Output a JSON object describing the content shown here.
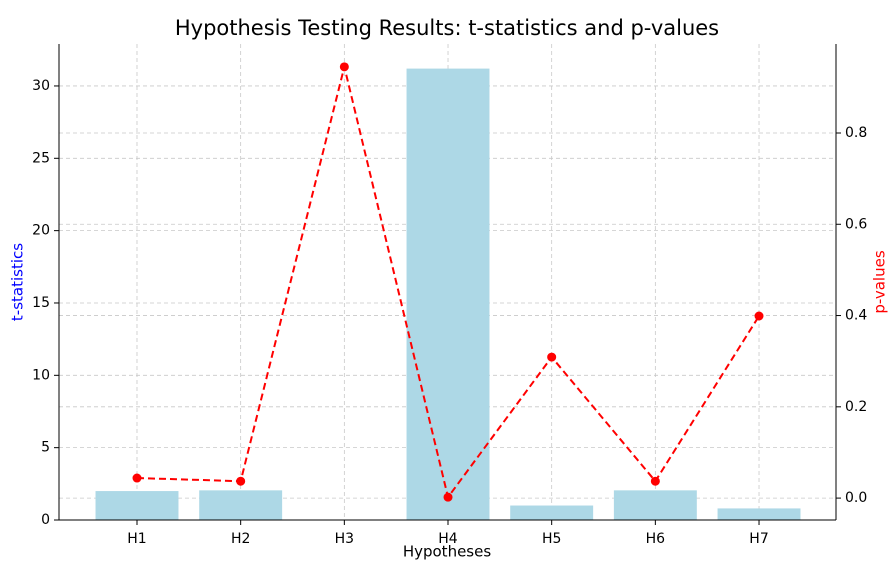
{
  "chart_data": {
    "type": "bar_line",
    "title": "Hypothesis Testing Results: t-statistics and p-values",
    "xlabel": "Hypotheses",
    "ylabel": "t-statistics",
    "y2label": "p-values",
    "categories": [
      "H1",
      "H2",
      "H3",
      "H4",
      "H5",
      "H6",
      "H7"
    ],
    "series": [
      {
        "name": "t-statistics",
        "type": "bar",
        "color": "#add8e6",
        "values": [
          2.0,
          2.05,
          0.02,
          31.2,
          1.0,
          2.05,
          0.8
        ]
      },
      {
        "name": "p-values",
        "type": "line",
        "axis": "y2",
        "color": "#ff0000",
        "values": [
          0.044,
          0.037,
          0.945,
          0.002,
          0.309,
          0.037,
          0.399
        ]
      }
    ],
    "ylim": [
      0,
      32.9
    ],
    "yticks": [
      0,
      5,
      10,
      15,
      20,
      25,
      30
    ],
    "y2lim": [
      -0.048,
      0.995
    ],
    "y2ticks": [
      {
        "value": 0,
        "label": "0.0"
      },
      {
        "value": 0.2,
        "label": "0.2"
      },
      {
        "value": 0.4,
        "label": "0.4"
      },
      {
        "value": 0.6,
        "label": "0.6"
      },
      {
        "value": 0.8,
        "label": "0.8"
      }
    ],
    "ylabel_color": "#0000ff",
    "y2label_color": "#ff0000",
    "grid": true
  }
}
